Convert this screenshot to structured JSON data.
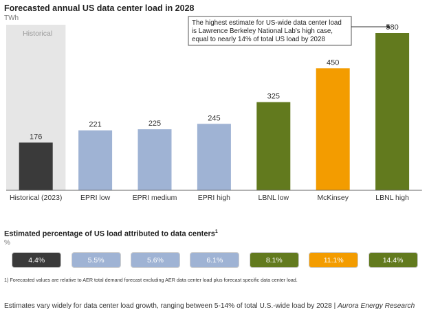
{
  "chart_data": {
    "type": "bar",
    "title": "Forecasted annual US data center load in 2028",
    "ylabel": "TWh",
    "ylim": [
      0,
      580
    ],
    "categories": [
      "Historical (2023)",
      "EPRI low",
      "EPRI medium",
      "EPRI high",
      "LBNL low",
      "McKinsey",
      "LBNL high"
    ],
    "values": [
      176,
      221,
      225,
      245,
      325,
      450,
      580
    ],
    "colors": [
      "#3a3a3a",
      "#9fb3d4",
      "#9fb3d4",
      "#9fb3d4",
      "#627a1e",
      "#f39c00",
      "#627a1e"
    ],
    "historical_label": "Historical",
    "historical_band_color": "#e6e6e6",
    "annotation": "The highest estimate for US-wide data center load is Lawrence Berkeley National Lab's high case, equal to nearly 14% of total US load by 2028",
    "annotation_lines": [
      "The highest estimate for US-wide data center load",
      "is Lawrence Berkeley National Lab's high case,",
      "equal to nearly 14% of total US load by 2028"
    ],
    "grid": false
  },
  "percentages": {
    "title": "Estimated percentage of US load attributed to data centers",
    "title_footnote_mark": "1",
    "unit": "%",
    "values": [
      "4.4%",
      "5.5%",
      "5.6%",
      "6.1%",
      "8.1%",
      "11.1%",
      "14.4%"
    ]
  },
  "footnote": "1) Forecasted values are relative to AER total demand forecast excluding AER data center load plus forecast specific data center load.",
  "caption": {
    "text": "Estimates vary widely for data center load growth, ranging between 5-14% of total U.S.-wide load by 2028 | ",
    "source": "Aurora Energy Research"
  }
}
